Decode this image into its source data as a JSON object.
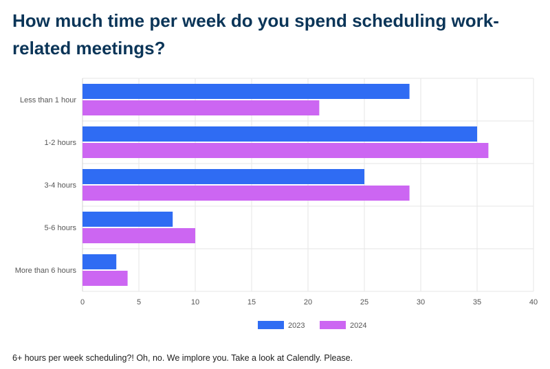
{
  "page": {
    "title": "How much time per week do you spend scheduling work-related meetings?",
    "footer": "6+ hours per week scheduling?! Oh, no. We implore you. Take a look at Calendly. Please."
  },
  "chart_data": {
    "type": "bar",
    "orientation": "horizontal",
    "categories": [
      "Less than 1 hour",
      "1-2 hours",
      "3-4 hours",
      "5-6 hours",
      "More than 6 hours"
    ],
    "series": [
      {
        "name": "2023",
        "values": [
          29,
          35,
          25,
          8,
          3
        ],
        "color": "#2f6cf3"
      },
      {
        "name": "2024",
        "values": [
          21,
          36,
          29,
          10,
          4
        ],
        "color": "#cc66f2"
      }
    ],
    "xlim": [
      0,
      40
    ],
    "xticks": [
      0,
      5,
      10,
      15,
      20,
      25,
      30,
      35,
      40
    ],
    "xlabel": "",
    "ylabel": "",
    "grid": true,
    "legend_position": "bottom-center"
  }
}
